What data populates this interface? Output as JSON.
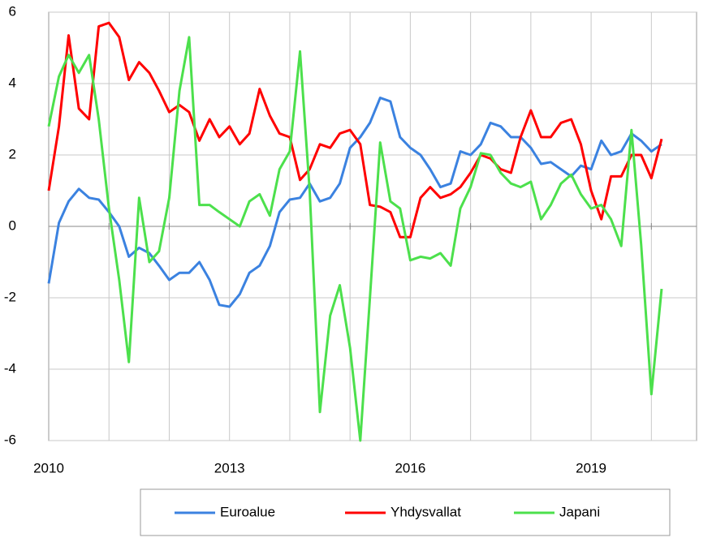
{
  "chart_data": {
    "type": "line",
    "x": [
      2010,
      2010.17,
      2010.33,
      2010.5,
      2010.67,
      2010.83,
      2011,
      2011.17,
      2011.33,
      2011.5,
      2011.67,
      2011.83,
      2012,
      2012.17,
      2012.33,
      2012.5,
      2012.67,
      2012.83,
      2013,
      2013.17,
      2013.33,
      2013.5,
      2013.67,
      2013.83,
      2014,
      2014.17,
      2014.33,
      2014.5,
      2014.67,
      2014.83,
      2015,
      2015.17,
      2015.33,
      2015.5,
      2015.67,
      2015.83,
      2016,
      2016.17,
      2016.33,
      2016.5,
      2016.67,
      2016.83,
      2017,
      2017.17,
      2017.33,
      2017.5,
      2017.67,
      2017.83,
      2018,
      2018.17,
      2018.33,
      2018.5,
      2018.67,
      2018.83,
      2019,
      2019.17,
      2019.33,
      2019.5,
      2019.67,
      2019.83,
      2020,
      2020.17
    ],
    "series": [
      {
        "name": "Euroalue",
        "color": "#3b82e0",
        "values": [
          -1.6,
          0.1,
          0.7,
          1.05,
          0.8,
          0.75,
          0.4,
          0.0,
          -0.85,
          -0.6,
          -0.75,
          -1.1,
          -1.5,
          -1.3,
          -1.3,
          -1.0,
          -1.5,
          -2.2,
          -2.25,
          -1.9,
          -1.3,
          -1.1,
          -0.55,
          0.4,
          0.75,
          0.8,
          1.2,
          0.7,
          0.8,
          1.2,
          2.2,
          2.5,
          2.9,
          3.6,
          3.5,
          2.5,
          2.2,
          2.0,
          1.6,
          1.1,
          1.2,
          2.1,
          2.0,
          2.3,
          2.9,
          2.8,
          2.5,
          2.5,
          2.2,
          1.75,
          1.8,
          1.6,
          1.4,
          1.7,
          1.6,
          2.4,
          2.0,
          2.1,
          2.6,
          2.4,
          2.1,
          2.3
        ]
      },
      {
        "name": "Yhdysvallat",
        "color": "#ff0000",
        "values": [
          1.0,
          2.8,
          5.35,
          3.3,
          3.0,
          5.6,
          5.7,
          5.3,
          4.1,
          4.6,
          4.3,
          3.8,
          3.2,
          3.4,
          3.2,
          2.4,
          3.0,
          2.5,
          2.8,
          2.3,
          2.6,
          3.85,
          3.1,
          2.6,
          2.5,
          1.3,
          1.6,
          2.3,
          2.2,
          2.6,
          2.7,
          2.3,
          0.6,
          0.55,
          0.4,
          -0.3,
          -0.3,
          0.8,
          1.1,
          0.8,
          0.9,
          1.1,
          1.5,
          2.0,
          1.9,
          1.6,
          1.5,
          2.5,
          3.25,
          2.5,
          2.5,
          2.9,
          3.0,
          2.3,
          1.0,
          0.2,
          1.4,
          1.4,
          2.0,
          2.0,
          1.35,
          2.45
        ]
      },
      {
        "name": "Japani",
        "color": "#4ce04c",
        "values": [
          2.8,
          4.2,
          4.8,
          4.3,
          4.8,
          3.0,
          0.5,
          -1.5,
          -3.8,
          0.8,
          -1.0,
          -0.7,
          0.8,
          3.8,
          5.3,
          0.6,
          0.6,
          0.4,
          0.2,
          0.0,
          0.7,
          0.9,
          0.3,
          1.6,
          2.1,
          4.9,
          1.0,
          -5.2,
          -2.5,
          -1.65,
          -3.4,
          -6.0,
          -2.0,
          2.35,
          0.7,
          0.5,
          -0.95,
          -0.85,
          -0.9,
          -0.75,
          -1.1,
          0.5,
          1.1,
          2.05,
          2.0,
          1.5,
          1.2,
          1.1,
          1.25,
          0.2,
          0.6,
          1.2,
          1.45,
          0.9,
          0.5,
          0.6,
          0.2,
          -0.55,
          2.7,
          -0.5,
          -4.7,
          -1.75
        ]
      }
    ],
    "xlim": [
      2010,
      2020.75
    ],
    "xticks": [
      2010,
      2013,
      2016,
      2019
    ],
    "xgrid": [
      2011,
      2012,
      2013,
      2014,
      2015,
      2016,
      2017,
      2018,
      2019,
      2020
    ],
    "ylim": [
      -6,
      6
    ],
    "yticks": [
      -6,
      -4,
      -2,
      0,
      2,
      4,
      6
    ],
    "grid": true,
    "legend": "bottom"
  }
}
